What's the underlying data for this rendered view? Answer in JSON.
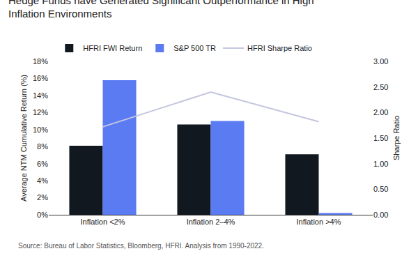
{
  "chart_data": {
    "type": "bar",
    "title": "Hedge Funds have Generated Significant Outperformance in High Inflation Environments",
    "categories": [
      "Inflation <2%",
      "Inflation 2–4%",
      "Inflation >4%"
    ],
    "series": [
      {
        "name": "HFRI FWI Return",
        "type": "bar",
        "color": "#111820",
        "values": [
          8.1,
          10.6,
          7.1
        ]
      },
      {
        "name": "S&P 500 TR",
        "type": "bar",
        "color": "#5b7bf3",
        "values": [
          15.8,
          11.0,
          0.2
        ]
      },
      {
        "name": "HFRI Sharpe Ratio",
        "type": "line",
        "axis": "y2",
        "color": "#c3c6de",
        "values": [
          1.72,
          2.4,
          1.82
        ]
      }
    ],
    "ylabel": "Average NTM Cumulative Return (%)",
    "y2label": "Sharpe Ratio",
    "ylim": [
      0,
      18
    ],
    "yticks": [
      {
        "value": 0,
        "label": "0%"
      },
      {
        "value": 2,
        "label": "2%"
      },
      {
        "value": 4,
        "label": "4%"
      },
      {
        "value": 6,
        "label": "6%"
      },
      {
        "value": 8,
        "label": "8%"
      },
      {
        "value": 10,
        "label": "10%"
      },
      {
        "value": 12,
        "label": "12%"
      },
      {
        "value": 14,
        "label": "14%"
      },
      {
        "value": 16,
        "label": "16%"
      },
      {
        "value": 18,
        "label": "18%"
      }
    ],
    "y2lim": [
      0,
      3
    ],
    "y2ticks": [
      {
        "value": 0,
        "label": "0.00"
      },
      {
        "value": 0.5,
        "label": "0.50"
      },
      {
        "value": 1,
        "label": "1.00"
      },
      {
        "value": 1.5,
        "label": "1.50"
      },
      {
        "value": 2,
        "label": "2.00"
      },
      {
        "value": 2.5,
        "label": "2.50"
      },
      {
        "value": 3,
        "label": "3.00"
      }
    ],
    "annotations": [
      "Source: Bureau of Labor Statistics, Bloomberg, HFRI. Analysis from 1990-2022."
    ],
    "grid": false,
    "legend": "top"
  }
}
